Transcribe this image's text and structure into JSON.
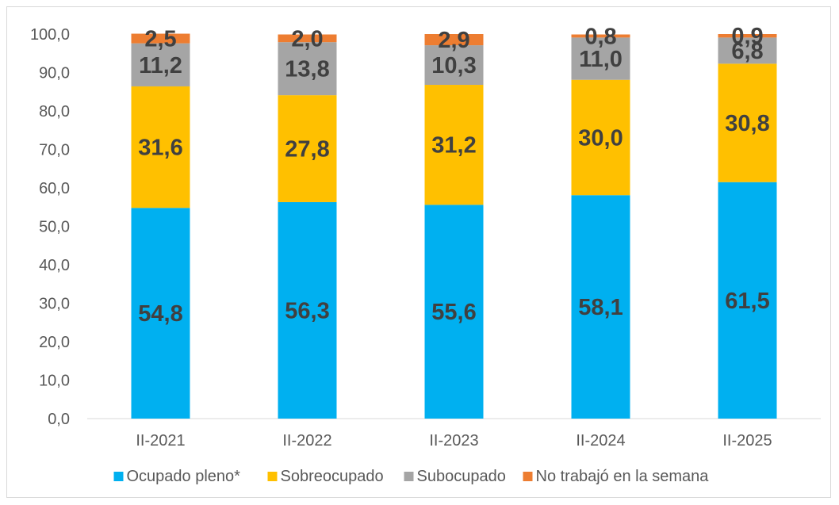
{
  "chart_data": {
    "type": "bar",
    "stacked": true,
    "categories": [
      "II-2021",
      "II-2022",
      "II-2023",
      "II-2024",
      "II-2025"
    ],
    "series": [
      {
        "name": "Ocupado pleno*",
        "color": "#00b0f0",
        "values": [
          54.8,
          56.3,
          55.6,
          58.1,
          61.5
        ],
        "labels": [
          "54,8",
          "56,3",
          "55,6",
          "58,1",
          "61,5"
        ]
      },
      {
        "name": "Sobreocupado",
        "color": "#ffc000",
        "values": [
          31.6,
          27.8,
          31.2,
          30.0,
          30.8
        ],
        "labels": [
          "31,6",
          "27,8",
          "31,2",
          "30,0",
          "30,8"
        ]
      },
      {
        "name": "Subocupado",
        "color": "#a5a5a5",
        "values": [
          11.2,
          13.8,
          10.3,
          11.0,
          6.8
        ],
        "labels": [
          "11,2",
          "13,8",
          "10,3",
          "11,0",
          "6,8"
        ]
      },
      {
        "name": "No trabajó en la semana",
        "color": "#ed7d31",
        "values": [
          2.5,
          2.0,
          2.9,
          0.8,
          0.9
        ],
        "labels": [
          "2,5",
          "2,0",
          "2,9",
          "0,8",
          "0,9"
        ]
      }
    ],
    "ylim": [
      0,
      100
    ],
    "yticks": [
      "0,0",
      "10,0",
      "20,0",
      "30,0",
      "40,0",
      "50,0",
      "60,0",
      "70,0",
      "80,0",
      "90,0",
      "100,0"
    ],
    "grid": false,
    "legend": "bottom"
  }
}
